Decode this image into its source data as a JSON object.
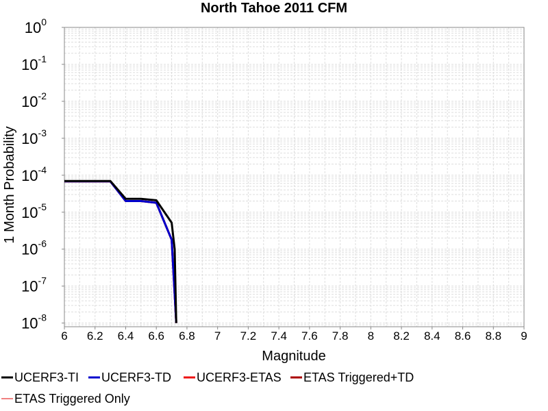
{
  "chart_data": {
    "type": "line",
    "title": "North Tahoe 2011 CFM",
    "xlabel": "Magnitude",
    "ylabel": "1 Month Probability",
    "xlim": [
      6,
      9
    ],
    "ylim_log10": [
      -8.1,
      0
    ],
    "y_scale": "log",
    "grid": true,
    "legend_placement": "bottom",
    "x_ticks": [
      "6",
      "6.2",
      "6.4",
      "6.6",
      "6.8",
      "7",
      "7.2",
      "7.4",
      "7.6",
      "7.8",
      "8",
      "8.2",
      "8.4",
      "8.6",
      "8.8",
      "9"
    ],
    "y_ticks": [
      {
        "base": "10",
        "exp": "0"
      },
      {
        "base": "10",
        "exp": "-1"
      },
      {
        "base": "10",
        "exp": "-2"
      },
      {
        "base": "10",
        "exp": "-3"
      },
      {
        "base": "10",
        "exp": "-4"
      },
      {
        "base": "10",
        "exp": "-5"
      },
      {
        "base": "10",
        "exp": "-6"
      },
      {
        "base": "10",
        "exp": "-7"
      },
      {
        "base": "10",
        "exp": "-8"
      }
    ],
    "series": [
      {
        "name": "UCERF3-TI",
        "color": "#000000",
        "x": [
          6.0,
          6.3,
          6.4,
          6.5,
          6.6,
          6.7,
          6.72,
          6.73
        ],
        "y": [
          7e-05,
          7e-05,
          2.3e-05,
          2.3e-05,
          2.1e-05,
          5.2e-06,
          1e-06,
          1e-08
        ]
      },
      {
        "name": "UCERF3-TD",
        "color": "#0000cc",
        "x": [
          6.0,
          6.3,
          6.4,
          6.5,
          6.6,
          6.7,
          6.73
        ],
        "y": [
          6.8e-05,
          6.8e-05,
          2e-05,
          2e-05,
          1.8e-05,
          1.8e-06,
          1e-08
        ]
      },
      {
        "name": "UCERF3-ETAS",
        "color": "#ee1111",
        "x": [
          6.0,
          6.3,
          6.4,
          6.5,
          6.6,
          6.7,
          6.73
        ],
        "y": [
          6.8e-05,
          6.8e-05,
          2e-05,
          2e-05,
          1.8e-05,
          1.8e-06,
          1e-08
        ]
      },
      {
        "name": "ETAS Triggered+TD",
        "color": "#aa0000",
        "x": [
          6.0,
          6.3,
          6.4,
          6.5,
          6.6,
          6.7,
          6.73
        ],
        "y": [
          6.8e-05,
          6.8e-05,
          2e-05,
          2e-05,
          1.8e-05,
          1.8e-06,
          1e-08
        ]
      },
      {
        "name": "ETAS Triggered Only",
        "color": "#f08080",
        "x": [],
        "y": []
      }
    ]
  }
}
